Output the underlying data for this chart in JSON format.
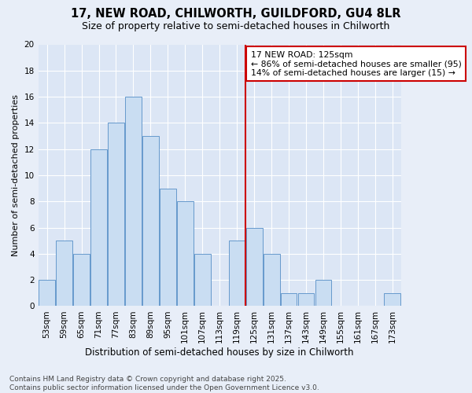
{
  "title1": "17, NEW ROAD, CHILWORTH, GUILDFORD, GU4 8LR",
  "title2": "Size of property relative to semi-detached houses in Chilworth",
  "xlabel": "Distribution of semi-detached houses by size in Chilworth",
  "ylabel": "Number of semi-detached properties",
  "categories": [
    "53sqm",
    "59sqm",
    "65sqm",
    "71sqm",
    "77sqm",
    "83sqm",
    "89sqm",
    "95sqm",
    "101sqm",
    "107sqm",
    "113sqm",
    "119sqm",
    "125sqm",
    "131sqm",
    "137sqm",
    "143sqm",
    "149sqm",
    "155sqm",
    "161sqm",
    "167sqm",
    "173sqm"
  ],
  "values": [
    2,
    5,
    4,
    12,
    14,
    16,
    13,
    9,
    8,
    4,
    0,
    5,
    6,
    4,
    1,
    1,
    2,
    0,
    0,
    0,
    1
  ],
  "bar_color": "#c9ddf2",
  "bar_edge_color": "#6699cc",
  "vline_index": 12,
  "vline_color": "#cc0000",
  "annotation_text": "17 NEW ROAD: 125sqm\n← 86% of semi-detached houses are smaller (95)\n14% of semi-detached houses are larger (15) →",
  "annotation_box_color": "#ffffff",
  "annotation_box_edge_color": "#cc0000",
  "ylim": [
    0,
    20
  ],
  "yticks": [
    0,
    2,
    4,
    6,
    8,
    10,
    12,
    14,
    16,
    18,
    20
  ],
  "plot_bg": "#dce6f5",
  "fig_bg": "#e8eef8",
  "footer1": "Contains HM Land Registry data © Crown copyright and database right 2025.",
  "footer2": "Contains public sector information licensed under the Open Government Licence v3.0.",
  "title1_fontsize": 10.5,
  "title2_fontsize": 9,
  "xlabel_fontsize": 8.5,
  "ylabel_fontsize": 8,
  "tick_fontsize": 7.5,
  "annotation_fontsize": 7.8,
  "footer_fontsize": 6.5
}
